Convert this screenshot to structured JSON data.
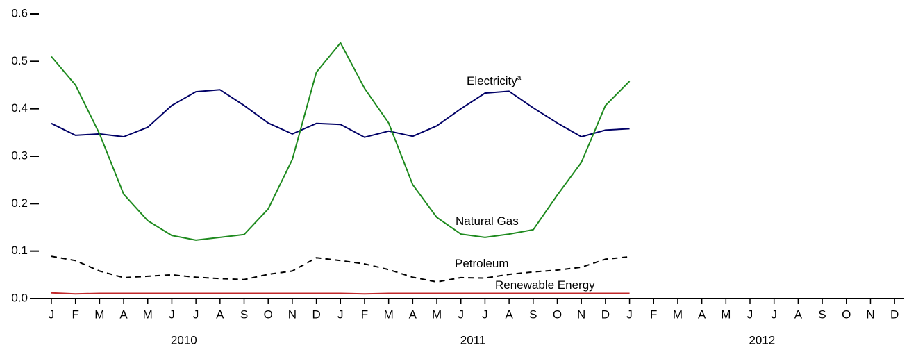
{
  "chart_data": {
    "type": "line",
    "categories": [
      "J",
      "F",
      "M",
      "A",
      "M",
      "J",
      "J",
      "A",
      "S",
      "O",
      "N",
      "D",
      "J",
      "F",
      "M",
      "A",
      "M",
      "J",
      "J",
      "A",
      "S",
      "O",
      "N",
      "D",
      "J",
      "F",
      "M",
      "A",
      "M",
      "J",
      "J",
      "A",
      "S",
      "O",
      "N",
      "D"
    ],
    "x_groups": [
      "2010",
      "2011",
      "2012"
    ],
    "series": [
      {
        "name": "Electricity",
        "superscript": "a",
        "color": "#000066",
        "style": "solid",
        "values": [
          0.369,
          0.344,
          0.347,
          0.341,
          0.361,
          0.407,
          0.436,
          0.44,
          0.407,
          0.37,
          0.347,
          0.369,
          0.367,
          0.34,
          0.353,
          0.342,
          0.364,
          0.4,
          0.433,
          0.437,
          0.402,
          0.37,
          0.341,
          0.355,
          0.358,
          null,
          null,
          null,
          null,
          null,
          null,
          null,
          null,
          null,
          null,
          null
        ]
      },
      {
        "name": "Natural Gas",
        "color": "#1e8a1e",
        "style": "solid",
        "values": [
          0.51,
          0.45,
          0.347,
          0.22,
          0.164,
          0.133,
          0.123,
          0.129,
          0.135,
          0.189,
          0.293,
          0.477,
          0.539,
          0.443,
          0.37,
          0.24,
          0.171,
          0.136,
          0.129,
          0.136,
          0.145,
          0.218,
          0.287,
          0.407,
          0.458,
          null,
          null,
          null,
          null,
          null,
          null,
          null,
          null,
          null,
          null,
          null
        ]
      },
      {
        "name": "Petroleum",
        "color": "#000000",
        "style": "dashed",
        "values": [
          0.089,
          0.08,
          0.058,
          0.044,
          0.047,
          0.05,
          0.045,
          0.042,
          0.04,
          0.051,
          0.058,
          0.086,
          0.08,
          0.073,
          0.061,
          0.045,
          0.035,
          0.044,
          0.043,
          0.051,
          0.056,
          0.06,
          0.066,
          0.083,
          0.088,
          null,
          null,
          null,
          null,
          null,
          null,
          null,
          null,
          null,
          null,
          null
        ]
      },
      {
        "name": "Renewable Energy",
        "color": "#c0282a",
        "style": "solid",
        "values": [
          0.012,
          0.01,
          0.011,
          0.011,
          0.011,
          0.011,
          0.011,
          0.011,
          0.011,
          0.011,
          0.011,
          0.011,
          0.011,
          0.01,
          0.011,
          0.011,
          0.011,
          0.011,
          0.011,
          0.011,
          0.011,
          0.011,
          0.011,
          0.011,
          0.011,
          null,
          null,
          null,
          null,
          null,
          null,
          null,
          null,
          null,
          null,
          null
        ]
      }
    ],
    "ylim": [
      0,
      0.6
    ],
    "yticks": [
      {
        "value": 0,
        "label": "0.0"
      },
      0.1,
      0.2,
      0.3,
      0.4,
      0.5,
      0.6
    ]
  }
}
